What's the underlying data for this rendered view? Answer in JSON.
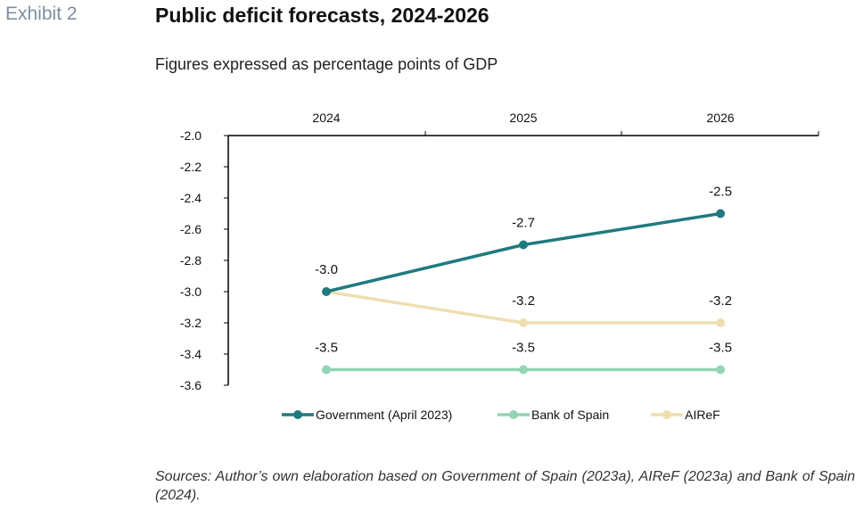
{
  "header": {
    "exhibit": "Exhibit 2",
    "title": "Public deficit forecasts, 2024-2026",
    "subtitle": "Figures expressed as percentage points of GDP"
  },
  "chart_data": {
    "type": "line",
    "x": [
      "2024",
      "2025",
      "2026"
    ],
    "ylim": [
      -3.6,
      -2.0
    ],
    "yticks": [
      -2.0,
      -2.2,
      -2.4,
      -2.6,
      -2.8,
      -3.0,
      -3.2,
      -3.4,
      -3.6
    ],
    "x_axis_position": "top",
    "grid": false,
    "legend_position": "bottom",
    "series": [
      {
        "name": "Government (April 2023)",
        "values": [
          -3.0,
          -2.7,
          -2.5
        ],
        "labels": [
          "-3.0",
          "-2.7",
          "-2.5"
        ],
        "color": "#1f7a7f"
      },
      {
        "name": "Bank of Spain",
        "values": [
          -3.5,
          -3.5,
          -3.5
        ],
        "labels": [
          "-3.5",
          "-3.5",
          "-3.5"
        ],
        "color": "#93d4b4"
      },
      {
        "name": "AIReF",
        "values": [
          -3.0,
          -3.2,
          -3.2
        ],
        "labels": [
          "",
          "-3.2",
          "-3.2"
        ],
        "color": "#efdeb2"
      }
    ]
  },
  "footer": {
    "source": "Sources: Author’s own elaboration based on Government of Spain (2023a), AIReF (2023a) and Bank of Spain (2024)."
  }
}
